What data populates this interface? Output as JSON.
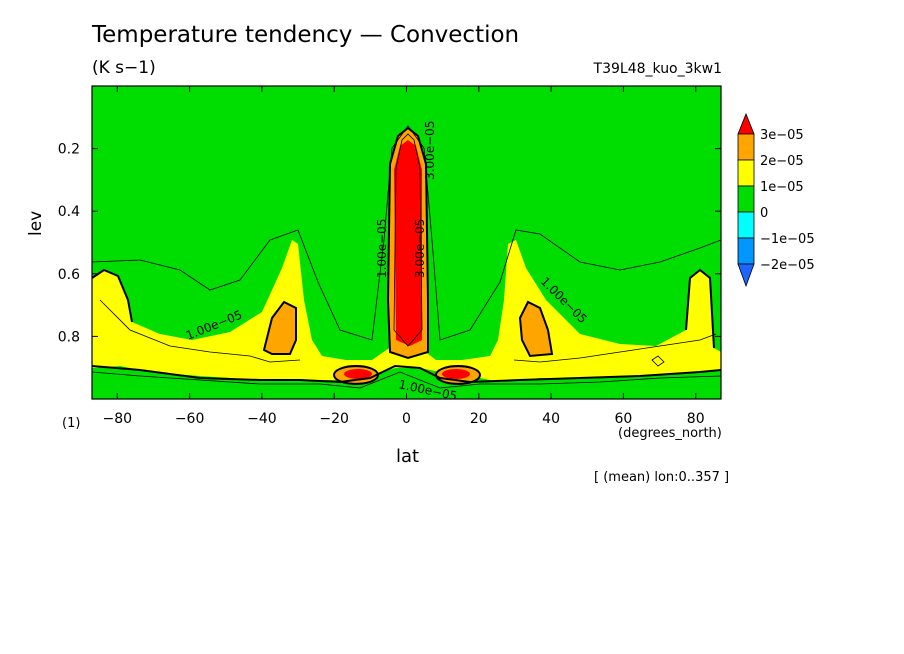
{
  "chart_data": {
    "type": "heatmap",
    "title": "Temperature tendency — Convection",
    "units": "(K s−1)",
    "run_id": "T39L48_kuo_3kw1",
    "xlabel": "lat",
    "xunit": "(degrees_north)",
    "ylabel": "lev",
    "yunit": "(1)",
    "mean_note": "[ (mean) lon:0..357 ]",
    "xlim": [
      -87,
      87
    ],
    "ylim": [
      0.0,
      1.0
    ],
    "y_reversed": true,
    "x_ticks": [
      -80,
      -60,
      -40,
      -20,
      0,
      20,
      40,
      60,
      80
    ],
    "x_tick_labels": [
      "−80",
      "−60",
      "−40",
      "−20",
      "0",
      "20",
      "40",
      "60",
      "80"
    ],
    "y_ticks": [
      0.2,
      0.4,
      0.6,
      0.8
    ],
    "y_tick_labels": [
      "0.2",
      "0.4",
      "0.6",
      "0.8"
    ],
    "levels": [
      -2e-05,
      -1e-05,
      0,
      1e-05,
      2e-05,
      3e-05
    ],
    "legend": {
      "placement": "right",
      "labels": [
        "3e−05",
        "2e−05",
        "1e−05",
        "0",
        "−1e−05",
        "−2e−05"
      ],
      "colors": [
        "#ff0000",
        "#ffa500",
        "#ffff00",
        "#00dd00",
        "#00ffff",
        "#0096ff",
        "#1e64ff"
      ]
    },
    "contour_labels": [
      "1.00e−05",
      "1.00e−05",
      "1.00e−05",
      "1.00e−05",
      "3.00e−05",
      "3.00e−05"
    ],
    "colors": {
      "background": "#00dd00",
      "band1": "#ffff00",
      "band2": "#ffa500",
      "band3": "#ff0000"
    }
  }
}
